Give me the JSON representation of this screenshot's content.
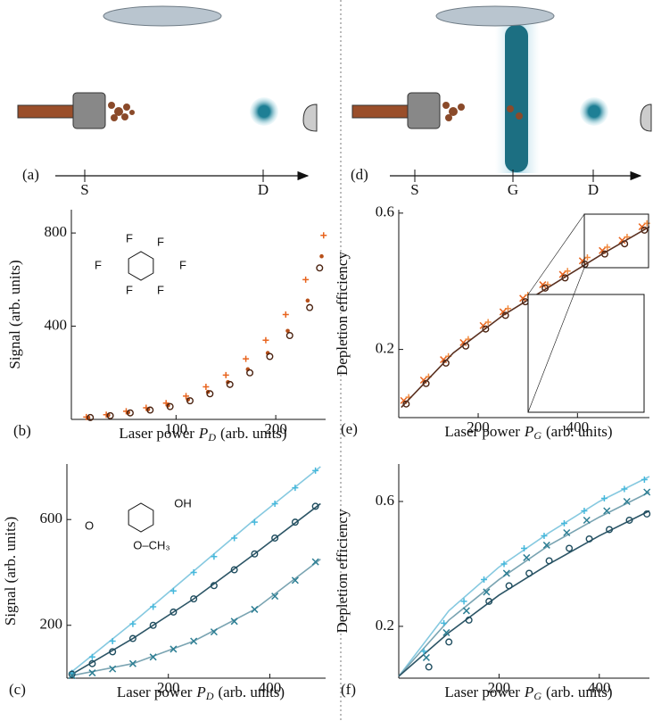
{
  "diagrams": [
    {
      "panel": "(a)",
      "axis_labels": [
        "S",
        "D"
      ]
    },
    {
      "panel": "(d)",
      "axis_labels": [
        "S",
        "G",
        "D"
      ]
    }
  ],
  "chart_data": [
    {
      "type": "scatter",
      "panel": "(b)",
      "ylabel": "Signal (arb. units)",
      "xlabel": {
        "text": "Laser power",
        "symbol": "P",
        "subscript": "D",
        "unit": "(arb. units)"
      },
      "xlim": [
        -5,
        250
      ],
      "xticks": [
        100,
        200
      ],
      "ylim": [
        0,
        900
      ],
      "yticks": [
        400,
        800
      ],
      "annotations": [
        "F",
        "F",
        "F",
        "F",
        "F",
        "F"
      ],
      "series": [
        {
          "marker": "plus",
          "color": "#e8641e",
          "x": [
            10,
            30,
            50,
            70,
            90,
            110,
            130,
            150,
            170,
            190,
            210,
            230,
            248
          ],
          "values": [
            10,
            20,
            35,
            50,
            70,
            100,
            140,
            190,
            260,
            340,
            450,
            600,
            790
          ]
        },
        {
          "marker": "dot",
          "color": "#b8501a",
          "x": [
            12,
            32,
            52,
            72,
            92,
            112,
            132,
            152,
            172,
            192,
            212,
            232,
            246
          ],
          "values": [
            8,
            18,
            30,
            43,
            60,
            85,
            118,
            160,
            215,
            285,
            380,
            510,
            700
          ]
        },
        {
          "marker": "circle",
          "color": "#4a2210",
          "x": [
            14,
            34,
            54,
            74,
            94,
            114,
            134,
            154,
            174,
            194,
            214,
            234,
            244
          ],
          "values": [
            8,
            16,
            28,
            40,
            55,
            80,
            110,
            150,
            200,
            270,
            360,
            480,
            650
          ]
        }
      ]
    },
    {
      "type": "scatter",
      "panel": "(c)",
      "ylabel": "Signal (arb. units)",
      "xlabel": {
        "text": "Laser power",
        "symbol": "P",
        "subscript": "D",
        "unit": "(arb. units)"
      },
      "xlim": [
        0,
        510
      ],
      "xticks": [
        200,
        400
      ],
      "ylim": [
        0,
        810
      ],
      "yticks": [
        200,
        600
      ],
      "annotations": [
        "OH",
        "O",
        "O–CH₃"
      ],
      "series": [
        {
          "marker": "line",
          "color": "#86c9e0",
          "x": [
            10,
            130,
            250,
            370,
            500
          ],
          "values": [
            25,
            210,
            405,
            600,
            800
          ]
        },
        {
          "marker": "line",
          "color": "#2c5566",
          "x": [
            10,
            130,
            250,
            370,
            500
          ],
          "values": [
            15,
            150,
            300,
            470,
            660
          ]
        },
        {
          "marker": "line",
          "color": "#7aa4b2",
          "x": [
            10,
            130,
            250,
            370,
            500
          ],
          "values": [
            10,
            55,
            140,
            260,
            450
          ]
        },
        {
          "marker": "plus",
          "color": "#45b8dc",
          "x": [
            10,
            50,
            90,
            130,
            170,
            210,
            250,
            290,
            330,
            370,
            410,
            450,
            490
          ],
          "values": [
            20,
            80,
            140,
            205,
            270,
            330,
            400,
            460,
            530,
            590,
            660,
            720,
            785
          ]
        },
        {
          "marker": "circle",
          "color": "#1f4d5f",
          "x": [
            10,
            50,
            90,
            130,
            170,
            210,
            250,
            290,
            330,
            370,
            410,
            450,
            490
          ],
          "values": [
            15,
            55,
            100,
            150,
            200,
            250,
            300,
            350,
            410,
            470,
            530,
            590,
            650
          ]
        },
        {
          "marker": "cross",
          "color": "#2e7f94",
          "x": [
            10,
            50,
            90,
            130,
            170,
            210,
            250,
            290,
            330,
            370,
            410,
            450,
            490
          ],
          "values": [
            10,
            20,
            35,
            55,
            80,
            110,
            140,
            175,
            215,
            260,
            310,
            370,
            440
          ]
        }
      ]
    },
    {
      "type": "scatter",
      "panel": "(e)",
      "ylabel": "Depletion efficiency",
      "xlabel": {
        "text": "Laser power",
        "symbol": "P",
        "subscript": "G",
        "unit": "(arb. units)"
      },
      "xlim": [
        40,
        545
      ],
      "xticks": [
        200,
        400
      ],
      "ylim": [
        0,
        0.61
      ],
      "yticks": [
        0.2,
        0.6
      ],
      "series": [
        {
          "marker": "cross",
          "color": "#e8641e",
          "x": [
            50,
            90,
            130,
            170,
            210,
            250,
            290,
            330,
            370,
            410,
            450,
            490,
            530
          ],
          "values": [
            0.05,
            0.11,
            0.17,
            0.22,
            0.27,
            0.31,
            0.35,
            0.39,
            0.42,
            0.46,
            0.49,
            0.52,
            0.56
          ]
        },
        {
          "marker": "plus",
          "color": "#f08a40",
          "x": [
            60,
            100,
            140,
            180,
            220,
            260,
            300,
            340,
            380,
            420,
            460,
            500,
            540
          ],
          "values": [
            0.06,
            0.12,
            0.18,
            0.23,
            0.28,
            0.32,
            0.36,
            0.39,
            0.43,
            0.47,
            0.5,
            0.53,
            0.57
          ]
        },
        {
          "marker": "circle",
          "color": "#4a2210",
          "x": [
            55,
            95,
            135,
            175,
            215,
            255,
            295,
            335,
            375,
            415,
            455,
            495,
            535
          ],
          "values": [
            0.04,
            0.1,
            0.16,
            0.21,
            0.26,
            0.3,
            0.34,
            0.38,
            0.41,
            0.45,
            0.48,
            0.51,
            0.55
          ]
        },
        {
          "marker": "line",
          "color": "#5a3020",
          "x": [
            45,
            150,
            250,
            350,
            450,
            545
          ],
          "values": [
            0.03,
            0.19,
            0.3,
            0.39,
            0.48,
            0.56
          ]
        }
      ]
    },
    {
      "type": "scatter",
      "panel": "(f)",
      "ylabel": "Depletion efficiency",
      "xlabel": {
        "text": "Laser power",
        "symbol": "P",
        "subscript": "G",
        "unit": "(arb. units)"
      },
      "xlim": [
        0,
        500
      ],
      "xticks": [
        200,
        400
      ],
      "ylim": [
        0.034,
        0.72
      ],
      "yticks": [
        0.2,
        0.6
      ],
      "series": [
        {
          "marker": "line",
          "color": "#86c9e0",
          "x": [
            0,
            100,
            200,
            300,
            400,
            500
          ],
          "values": [
            0.04,
            0.25,
            0.39,
            0.5,
            0.6,
            0.68
          ]
        },
        {
          "marker": "line",
          "color": "#7aa4b2",
          "x": [
            0,
            100,
            200,
            300,
            400,
            500
          ],
          "values": [
            0.04,
            0.22,
            0.35,
            0.46,
            0.55,
            0.63
          ]
        },
        {
          "marker": "line",
          "color": "#2c5566",
          "x": [
            0,
            100,
            200,
            300,
            400,
            500
          ],
          "values": [
            0.04,
            0.18,
            0.3,
            0.4,
            0.49,
            0.57
          ]
        },
        {
          "marker": "plus",
          "color": "#45b8dc",
          "x": [
            50,
            90,
            130,
            170,
            210,
            250,
            290,
            330,
            370,
            410,
            450,
            490
          ],
          "values": [
            0.12,
            0.21,
            0.28,
            0.35,
            0.4,
            0.45,
            0.49,
            0.53,
            0.57,
            0.61,
            0.64,
            0.67
          ]
        },
        {
          "marker": "cross",
          "color": "#2e7f94",
          "x": [
            55,
            95,
            135,
            175,
            215,
            255,
            295,
            335,
            375,
            415,
            455,
            495
          ],
          "values": [
            0.1,
            0.18,
            0.25,
            0.31,
            0.37,
            0.42,
            0.46,
            0.5,
            0.54,
            0.57,
            0.6,
            0.63
          ]
        },
        {
          "marker": "circle",
          "color": "#1f4d5f",
          "x": [
            60,
            100,
            140,
            180,
            220,
            260,
            300,
            340,
            380,
            420,
            460,
            495
          ],
          "values": [
            0.07,
            0.15,
            0.22,
            0.28,
            0.33,
            0.37,
            0.41,
            0.45,
            0.48,
            0.51,
            0.54,
            0.56
          ]
        }
      ]
    }
  ]
}
